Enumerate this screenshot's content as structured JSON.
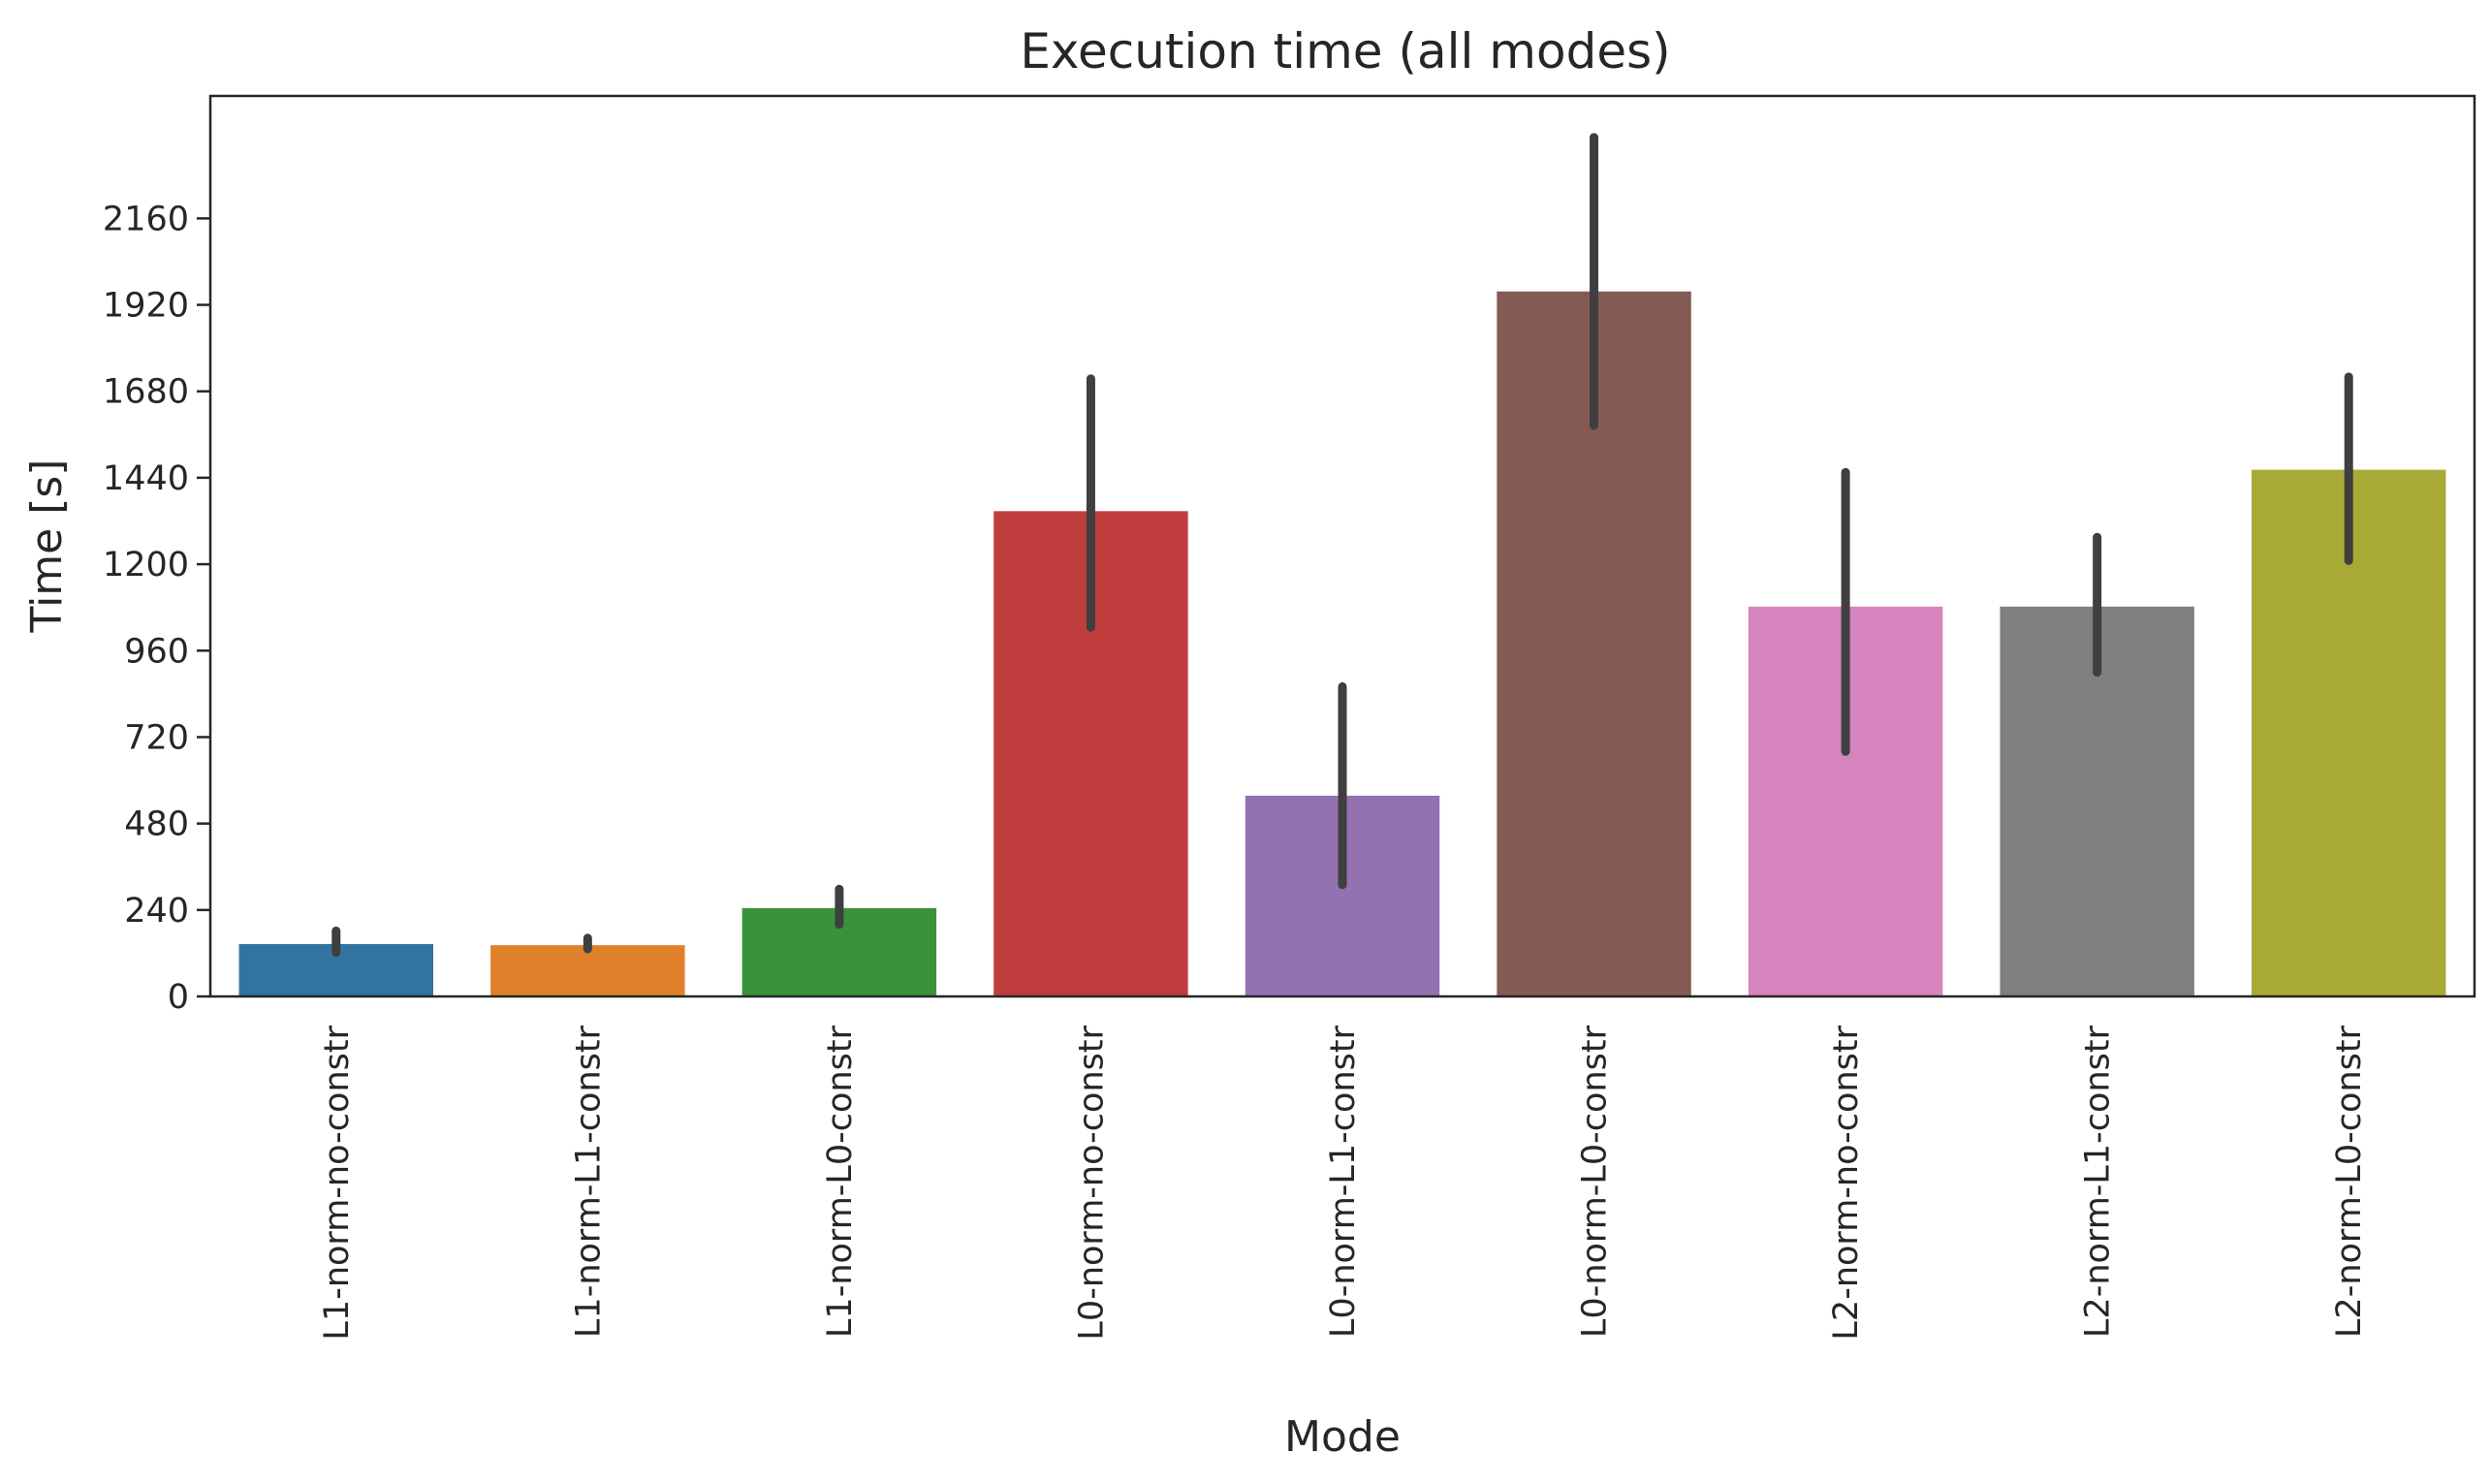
{
  "chart_data": {
    "type": "bar",
    "title": "Execution time (all modes)",
    "xlabel": "Mode",
    "ylabel": "Time [s]",
    "ylim": [
      0,
      2500
    ],
    "yticks": [
      0,
      240,
      480,
      720,
      960,
      1200,
      1440,
      1680,
      1920,
      2160
    ],
    "grid": false,
    "categories": [
      "L1-norm-no-constr",
      "L1-norm-L1-constr",
      "L1-norm-L0-constr",
      "L0-norm-no-constr",
      "L0-norm-L1-constr",
      "L0-norm-L0-constr",
      "L2-norm-no-constr",
      "L2-norm-L1-constr",
      "L2-norm-L0-constr"
    ],
    "values": [
      148,
      145,
      248,
      1350,
      560,
      1960,
      1085,
      1085,
      1465
    ],
    "errors": [
      [
        122,
        182
      ],
      [
        132,
        162
      ],
      [
        200,
        298
      ],
      [
        1025,
        1715
      ],
      [
        310,
        860
      ],
      [
        1585,
        2385
      ],
      [
        680,
        1455
      ],
      [
        900,
        1275
      ],
      [
        1210,
        1720
      ]
    ],
    "colors": [
      "#3274a1",
      "#e1812c",
      "#3a923a",
      "#c03d3e",
      "#9372b2",
      "#845b53",
      "#d684bd",
      "#7f7f7f",
      "#a9aa35"
    ],
    "error_color": "#3f3f3f"
  }
}
